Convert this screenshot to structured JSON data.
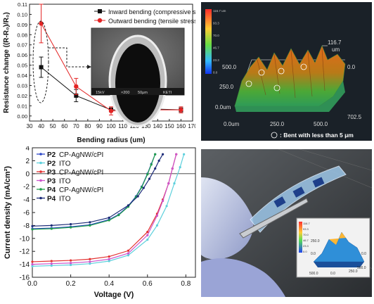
{
  "chart_data": [
    {
      "type": "line",
      "xlabel": "Bending radius (um)",
      "ylabel": "Resistance change ((R-R₀)/R₀)",
      "xlim": [
        30,
        170
      ],
      "ylim": [
        -0.005,
        0.11
      ],
      "xticks": [
        "30",
        "40",
        "50",
        "60",
        "70",
        "80",
        "90",
        "100",
        "110",
        "120",
        "130",
        "140",
        "150",
        "160",
        "170"
      ],
      "yticks": [
        "0.00",
        "0.01",
        "0.02",
        "0.03",
        "0.04",
        "0.05",
        "0.06",
        "0.07",
        "0.08",
        "0.09",
        "0.10",
        "0.11"
      ],
      "legend_position": "top-right",
      "series": [
        {
          "name": "Inward bending (compressive stress)",
          "color": "#111111",
          "marker": "square",
          "x": [
            40,
            70,
            100,
            130,
            160
          ],
          "y": [
            0.048,
            0.02,
            0.006,
            0.007,
            0.006
          ],
          "err": [
            0.01,
            0.006,
            0.002,
            0.002,
            0.002
          ]
        },
        {
          "name": "Outward bending (tensile stress)",
          "color": "#e32424",
          "marker": "circle",
          "x": [
            40,
            70,
            100,
            130,
            160
          ],
          "y": [
            0.091,
            0.029,
            0.005,
            0.006,
            0.006
          ],
          "err": [
            0.019,
            0.008,
            0.004,
            0.003,
            0.003
          ]
        }
      ],
      "inset_text": [
        "15kV",
        "×200",
        "50μm",
        "KETI"
      ]
    },
    {
      "type": "area",
      "z_label": "116.7",
      "z_unit": "um",
      "scale_values": [
        "116.7 um",
        "93.3",
        "70.0",
        "46.7",
        "23.3",
        "0.0"
      ],
      "axis_labels": [
        "500.0",
        "250.0",
        "0.0um",
        "0.0um",
        "250.0",
        "500.0",
        "702.5",
        "0.0"
      ],
      "legend_note": ": Bent with less than 5 μm",
      "color_scale": [
        "#ff2a2a",
        "#ffcc33",
        "#66dd44",
        "#33bbff",
        "#1133ee"
      ]
    },
    {
      "type": "line",
      "xlabel": "Voltage (V)",
      "ylabel": "Current density (mA/cm²)",
      "xlim": [
        0.0,
        0.85
      ],
      "ylim": [
        -16,
        4
      ],
      "xticks": [
        "0.0",
        "0.2",
        "0.4",
        "0.6",
        "0.8"
      ],
      "yticks": [
        "4",
        "2",
        "0",
        "-2",
        "-4",
        "-6",
        "-8",
        "-10",
        "-12",
        "-14",
        "-16"
      ],
      "legend_position": "top-left",
      "series": [
        {
          "name": "P2 CP-AgNW/cPI",
          "short": "P2",
          "label": "CP-AgNW/cPI",
          "color": "#2e48c8",
          "x": [
            0,
            0.1,
            0.2,
            0.3,
            0.4,
            0.45,
            0.5,
            0.54,
            0.57,
            0.6,
            0.62,
            0.64
          ],
          "y": [
            -8.5,
            -8.4,
            -8.2,
            -7.9,
            -7.1,
            -6.3,
            -5.0,
            -3.5,
            -2.0,
            0.0,
            1.5,
            3.0
          ]
        },
        {
          "name": "P2 ITO",
          "short": "P2",
          "label": "ITO",
          "color": "#5dd0dc",
          "x": [
            0,
            0.1,
            0.2,
            0.3,
            0.4,
            0.5,
            0.6,
            0.65,
            0.7,
            0.74,
            0.77,
            0.79
          ],
          "y": [
            -14.3,
            -14.2,
            -14.1,
            -13.9,
            -13.5,
            -12.6,
            -10.2,
            -8.0,
            -5.0,
            -1.5,
            1.0,
            3.0
          ]
        },
        {
          "name": "P3 CP-AgNW/cPI",
          "short": "P3",
          "label": "CP-AgNW/cPI",
          "color": "#e33030",
          "x": [
            0,
            0.1,
            0.2,
            0.3,
            0.4,
            0.5,
            0.6,
            0.65,
            0.68,
            0.71,
            0.73,
            0.75
          ],
          "y": [
            -13.6,
            -13.5,
            -13.4,
            -13.2,
            -12.8,
            -11.9,
            -9.0,
            -6.2,
            -4.0,
            -1.5,
            0.8,
            3.0
          ]
        },
        {
          "name": "P3 ITO",
          "short": "P3",
          "label": "ITO",
          "color": "#cc55cc",
          "x": [
            0,
            0.1,
            0.2,
            0.3,
            0.4,
            0.5,
            0.6,
            0.65,
            0.68,
            0.71,
            0.73,
            0.75
          ],
          "y": [
            -14.0,
            -13.9,
            -13.8,
            -13.6,
            -13.2,
            -12.3,
            -9.5,
            -6.5,
            -4.2,
            -1.5,
            0.8,
            3.0
          ]
        },
        {
          "name": "P4 CP-AgNW/cPI",
          "short": "P4",
          "label": "CP-AgNW/cPI",
          "color": "#1f9e4a",
          "x": [
            0,
            0.1,
            0.2,
            0.3,
            0.4,
            0.45,
            0.5,
            0.54,
            0.57,
            0.6,
            0.62,
            0.64
          ],
          "y": [
            -8.6,
            -8.5,
            -8.3,
            -8.0,
            -7.2,
            -6.4,
            -5.1,
            -3.6,
            -2.1,
            -0.1,
            1.4,
            3.0
          ]
        },
        {
          "name": "P4 ITO",
          "short": "P4",
          "label": "ITO",
          "color": "#1b2a78",
          "x": [
            0,
            0.1,
            0.2,
            0.3,
            0.4,
            0.5,
            0.55,
            0.58,
            0.61,
            0.64,
            0.66,
            0.68
          ],
          "y": [
            -8.1,
            -8.0,
            -7.8,
            -7.5,
            -6.8,
            -4.9,
            -3.5,
            -2.2,
            -0.8,
            0.8,
            2.0,
            3.0
          ]
        }
      ]
    },
    {
      "type": "area",
      "inset_scale_values": [
        "116.7",
        "93.3",
        "70.0",
        "46.7",
        "23.3",
        "0.0"
      ],
      "inset_axis_labels": [
        "500.0",
        "250.0",
        "0.0",
        "0.0",
        "250.0",
        "500.0",
        "0.0"
      ]
    }
  ]
}
